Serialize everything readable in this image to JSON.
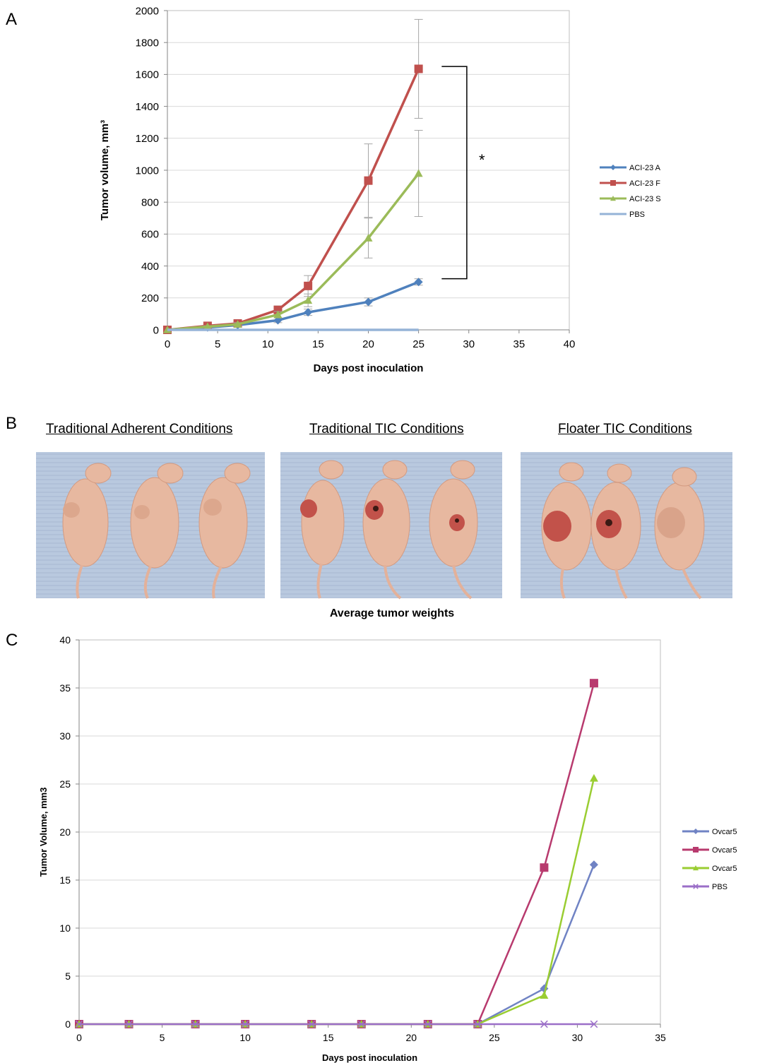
{
  "panels": {
    "a": "A",
    "b": "B",
    "c": "C"
  },
  "panel_b": {
    "titles": [
      "Traditional Adherent Conditions",
      "Traditional TIC Conditions",
      "Floater TIC Conditions"
    ],
    "photo_icons": [
      "mice-photo-adherent",
      "mice-photo-tic",
      "mice-photo-floater"
    ]
  },
  "colors": {
    "aci_a": "#4F81BD",
    "aci_f": "#C0504D",
    "aci_s": "#9BBB59",
    "pbs_a": "#95B3D7",
    "ov_a": "#7083C4",
    "ov_f": "#B83A6E",
    "ov_s": "#9ACD32",
    "ov_pbs": "#9B6FC8",
    "grid": "#D9D9D9",
    "errbar": "#A6A6A6"
  },
  "chart_data": [
    {
      "type": "line",
      "title": "",
      "xlabel": "Days post inoculation",
      "ylabel": "Tumor volume, mm³",
      "xlim": [
        0,
        40
      ],
      "ylim": [
        0,
        2000
      ],
      "xticks": [
        "0",
        "5",
        "10",
        "15",
        "20",
        "25",
        "30",
        "35",
        "40"
      ],
      "yticks": [
        "0",
        "200",
        "400",
        "600",
        "800",
        "1000",
        "1200",
        "1400",
        "1600",
        "1800",
        "2000"
      ],
      "legend_position": "right",
      "grid": true,
      "significance": "*",
      "series": [
        {
          "name": "ACI-23 A",
          "marker": "diamond",
          "x": [
            0,
            4,
            7,
            11,
            14,
            20,
            25
          ],
          "y": [
            0,
            15,
            30,
            60,
            110,
            175,
            300
          ],
          "err": [
            0,
            5,
            8,
            15,
            20,
            25,
            20
          ]
        },
        {
          "name": "ACI-23 F",
          "marker": "square",
          "x": [
            0,
            4,
            7,
            11,
            14,
            20,
            25
          ],
          "y": [
            0,
            25,
            40,
            125,
            275,
            935,
            1635
          ],
          "err": [
            0,
            8,
            10,
            25,
            65,
            230,
            310
          ]
        },
        {
          "name": "ACI-23 S",
          "marker": "triangle",
          "x": [
            0,
            4,
            7,
            11,
            14,
            20,
            25
          ],
          "y": [
            0,
            20,
            35,
            95,
            185,
            575,
            980
          ],
          "err": [
            0,
            6,
            10,
            20,
            40,
            125,
            270
          ]
        },
        {
          "name": "PBS",
          "marker": "none",
          "x": [
            0,
            4,
            7,
            11,
            14,
            20,
            25
          ],
          "y": [
            0,
            0,
            0,
            0,
            0,
            0,
            0
          ],
          "err": [
            0,
            0,
            0,
            0,
            0,
            0,
            0
          ]
        }
      ]
    },
    {
      "type": "line",
      "title": "Average tumor weights",
      "xlabel": "Days post inoculation",
      "ylabel": "Tumor Volume, mm3",
      "xlim": [
        0,
        35
      ],
      "ylim": [
        0,
        40
      ],
      "xticks": [
        "0",
        "5",
        "10",
        "15",
        "20",
        "25",
        "30",
        "35"
      ],
      "yticks": [
        "0",
        "5",
        "10",
        "15",
        "20",
        "25",
        "30",
        "35",
        "40"
      ],
      "legend_position": "right",
      "grid": true,
      "series": [
        {
          "name": "Ovcar5",
          "marker": "diamond",
          "x": [
            0,
            3,
            7,
            10,
            14,
            17,
            21,
            24,
            28,
            31
          ],
          "y": [
            0,
            0,
            0,
            0,
            0,
            0,
            0,
            0,
            3.7,
            16.6
          ]
        },
        {
          "name": "Ovcar5",
          "marker": "square",
          "x": [
            0,
            3,
            7,
            10,
            14,
            17,
            21,
            24,
            28,
            31
          ],
          "y": [
            0,
            0,
            0,
            0,
            0,
            0,
            0,
            0,
            16.3,
            35.5
          ]
        },
        {
          "name": "Ovcar5",
          "marker": "triangle",
          "x": [
            0,
            3,
            7,
            10,
            14,
            17,
            21,
            24,
            28,
            31
          ],
          "y": [
            0,
            0,
            0,
            0,
            0,
            0,
            0,
            0,
            3.0,
            25.6
          ]
        },
        {
          "name": "PBS",
          "marker": "x",
          "x": [
            0,
            3,
            7,
            10,
            14,
            17,
            21,
            24,
            28,
            31
          ],
          "y": [
            0,
            0,
            0,
            0,
            0,
            0,
            0,
            0,
            0,
            0
          ]
        }
      ]
    }
  ]
}
